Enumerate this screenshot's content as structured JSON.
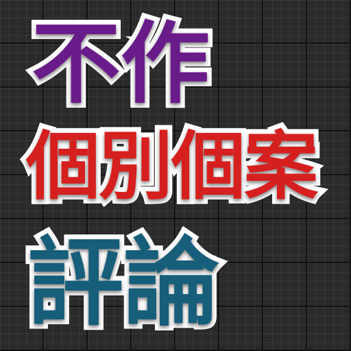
{
  "lines": [
    {
      "text": "不作",
      "color": "#6a1b8a"
    },
    {
      "text": "個別個案",
      "color": "#d6201f"
    },
    {
      "text": "評論",
      "color": "#175e7a"
    }
  ]
}
